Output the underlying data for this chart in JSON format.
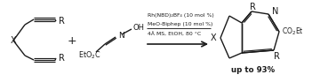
{
  "figsize": [
    3.78,
    0.93
  ],
  "dpi": 100,
  "bg_color": "#ffffff",
  "text_color": "#1a1a1a",
  "line_color": "#1a1a1a",
  "reagent_line1": "Rh(NBD)₂BF₄ (10 mol %)",
  "reagent_line2": "MeO-Biphep (10 mol %)",
  "reagent_line3": "4Å MS, EtOH, 80 °C",
  "yield_text": "up to 93%",
  "plus_sign": "+",
  "X_label": "X",
  "R_label": "R",
  "N_label": "N",
  "OH_label": "OH",
  "CO2Et_label": "CO₂Et",
  "EtO2C_label": "EtO₂C"
}
